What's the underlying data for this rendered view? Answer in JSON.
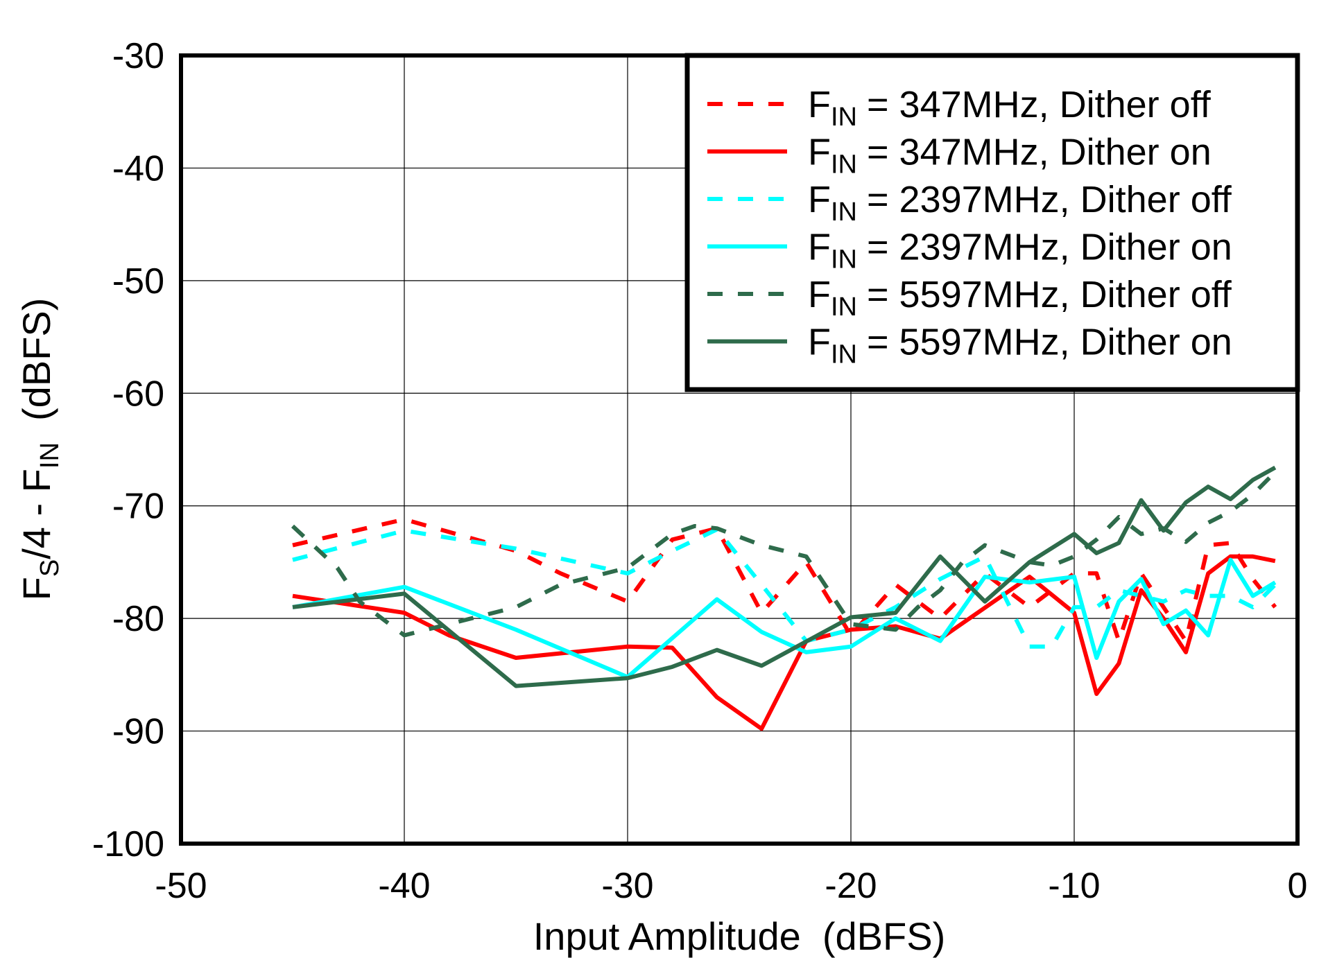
{
  "chart_data": {
    "type": "line",
    "xlabel": "Input Amplitude  (dBFS)",
    "ylabel": {
      "main": "F",
      "sub1": "S",
      "mid": "/4 - F",
      "sub2": "IN",
      "unit": "  (dBFS)"
    },
    "xlim": [
      -50,
      0
    ],
    "ylim": [
      -100,
      -30
    ],
    "xticks": [
      -50,
      -40,
      -30,
      -20,
      -10,
      0
    ],
    "yticks": [
      -30,
      -40,
      -50,
      -60,
      -70,
      -80,
      -90,
      -100
    ],
    "grid": true,
    "legend_position": "top-right",
    "series": [
      {
        "name": "= 347MHz,  Dither off",
        "legend_prefix": "F",
        "legend_sub": "IN",
        "color": "#ff0000",
        "dashed": true,
        "x": [
          -45,
          -40,
          -35,
          -33,
          -30,
          -28,
          -26,
          -24,
          -22,
          -20,
          -18,
          -16,
          -14,
          -12,
          -10,
          -9,
          -8,
          -7,
          -6,
          -5,
          -4,
          -3,
          -2,
          -1
        ],
        "y": [
          -73.5,
          -71.2,
          -74,
          -76,
          -78.5,
          -73,
          -72,
          -79.5,
          -75,
          -81.5,
          -77,
          -80,
          -76,
          -79,
          -76,
          -76,
          -82,
          -76,
          -79,
          -82,
          -73.5,
          -73.3,
          -76.5,
          -79
        ]
      },
      {
        "name": "= 347MHz,  Dither on",
        "legend_prefix": "F",
        "legend_sub": "IN",
        "color": "#ff0000",
        "dashed": false,
        "x": [
          -45,
          -40,
          -38,
          -35,
          -30,
          -28,
          -26,
          -24,
          -22,
          -20,
          -18,
          -16,
          -12,
          -10,
          -9,
          -8,
          -7,
          -6,
          -5,
          -4,
          -3,
          -2,
          -1
        ],
        "y": [
          -78,
          -79.5,
          -81.5,
          -83.5,
          -82.5,
          -82.6,
          -87,
          -89.8,
          -82,
          -81,
          -80.7,
          -81.8,
          -76.3,
          -79.5,
          -86.7,
          -84,
          -77.5,
          -80,
          -83,
          -76,
          -74.5,
          -74.5,
          -74.9
        ]
      },
      {
        "name": "= 2397MHz,  Dither off",
        "legend_prefix": "F",
        "legend_sub": "IN",
        "color": "#00ffff",
        "dashed": true,
        "x": [
          -45,
          -40,
          -35,
          -30,
          -28,
          -26,
          -24,
          -22,
          -20,
          -18,
          -16,
          -14,
          -12,
          -11,
          -10,
          -9,
          -8,
          -7,
          -6,
          -5,
          -4,
          -3,
          -2,
          -1
        ],
        "y": [
          -74.8,
          -72.2,
          -73.8,
          -76,
          -74,
          -72.1,
          -77,
          -82,
          -81,
          -79,
          -76.5,
          -74.5,
          -82.5,
          -82.5,
          -79,
          -79,
          -77.5,
          -78,
          -78.5,
          -77.5,
          -78,
          -78,
          -79,
          -77
        ]
      },
      {
        "name": "= 2397MHz,  Dither on",
        "legend_prefix": "F",
        "legend_sub": "IN",
        "color": "#00ffff",
        "dashed": false,
        "x": [
          -45,
          -40,
          -35,
          -30,
          -26,
          -24,
          -22,
          -20,
          -18,
          -16,
          -14,
          -12,
          -10,
          -9,
          -8,
          -7,
          -6,
          -5,
          -4,
          -3,
          -2,
          -1
        ],
        "y": [
          -79,
          -77.2,
          -81,
          -85.2,
          -78.3,
          -81.2,
          -83,
          -82.5,
          -80,
          -82,
          -76.3,
          -76.8,
          -76.3,
          -83.5,
          -78.5,
          -76.5,
          -80.5,
          -79.3,
          -81.5,
          -74.8,
          -78,
          -76.8
        ]
      },
      {
        "name": "= 5597MHz,  Dither off",
        "legend_prefix": "F",
        "legend_sub": "IN",
        "color": "#2e6b4b",
        "dashed": true,
        "x": [
          -45,
          -43,
          -42,
          -40,
          -38,
          -35,
          -33,
          -30,
          -28,
          -27,
          -26,
          -24,
          -22,
          -21,
          -20,
          -18,
          -17,
          -16,
          -15,
          -14,
          -12,
          -11,
          -10,
          -9,
          -8,
          -7,
          -6,
          -5,
          -4,
          -3,
          -2,
          -1
        ],
        "y": [
          -71.8,
          -75.5,
          -78.5,
          -81.5,
          -80.5,
          -79,
          -77,
          -75.5,
          -72.5,
          -71.8,
          -72,
          -73.5,
          -74.5,
          -77.5,
          -80.5,
          -81,
          -79,
          -77.5,
          -75,
          -73.5,
          -75,
          -75.3,
          -74.5,
          -73,
          -71,
          -72.5,
          -72,
          -73.2,
          -71.5,
          -70.5,
          -69,
          -67
        ]
      },
      {
        "name": "= 5597MHz,  Dither on",
        "legend_prefix": "F",
        "legend_sub": "IN",
        "color": "#2e6b4b",
        "dashed": false,
        "x": [
          -45,
          -40,
          -35,
          -30,
          -28,
          -26,
          -24,
          -20,
          -18,
          -16,
          -14,
          -12,
          -10,
          -9,
          -8,
          -7,
          -6,
          -5,
          -4,
          -3,
          -2,
          -1
        ],
        "y": [
          -79,
          -77.8,
          -86,
          -85.3,
          -84.3,
          -82.8,
          -84.2,
          -79.9,
          -79.5,
          -74.5,
          -78.5,
          -75,
          -72.5,
          -74.2,
          -73.3,
          -69.5,
          -72.2,
          -69.7,
          -68.3,
          -69.4,
          -67.7,
          -66.6
        ]
      }
    ]
  }
}
